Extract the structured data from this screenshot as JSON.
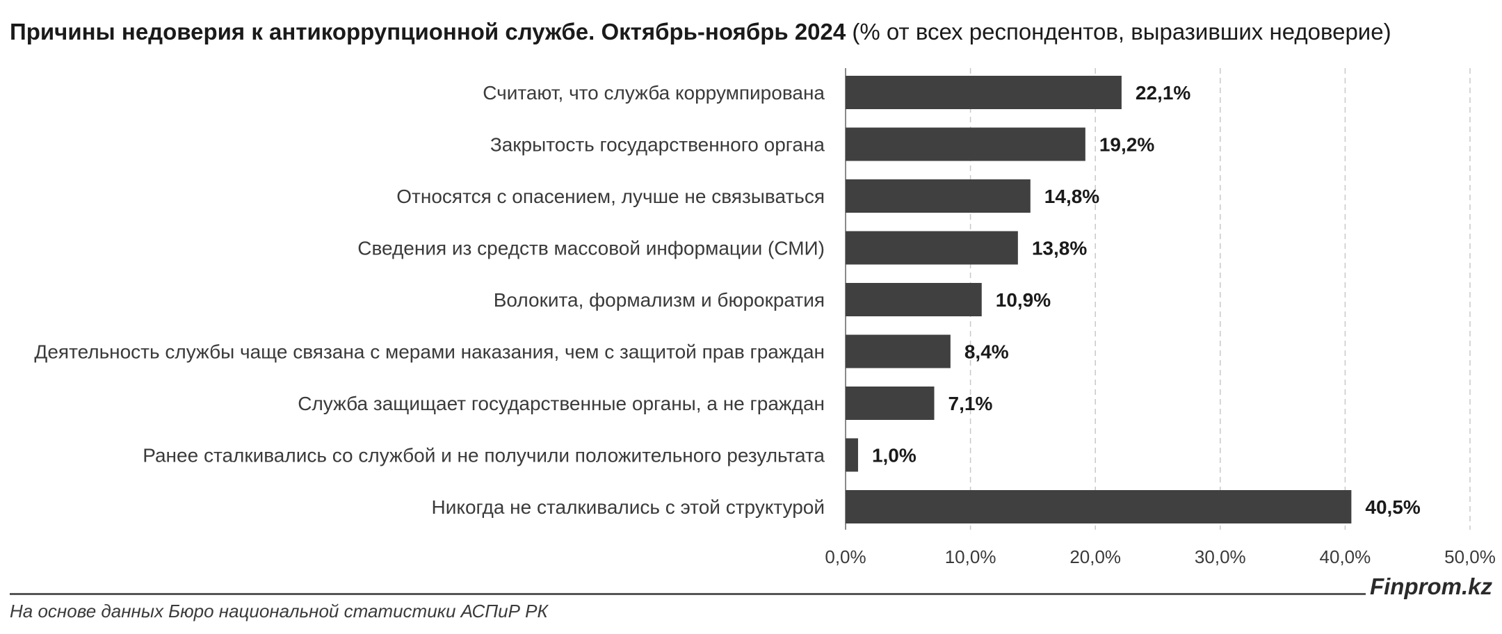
{
  "title": {
    "bold": "Причины недоверия к антикоррупционной службе. Октябрь-ноябрь 2024",
    "normal": " (% от всех респондентов, выразивших недоверие)"
  },
  "chart_data": {
    "type": "bar",
    "orientation": "horizontal",
    "categories": [
      "Считают, что служба коррумпирована",
      "Закрытость государственного органа",
      "Относятся с опасением, лучше не связываться",
      "Сведения из средств массовой информации (СМИ)",
      "Волокита, формализм и бюрократия",
      "Деятельность службы чаще связана с мерами наказания, чем с защитой прав граждан",
      "Служба защищает государственные органы, а не граждан",
      "Ранее сталкивались со службой и не получили положительного результата",
      "Никогда не сталкивались с этой структурой"
    ],
    "values": [
      22.1,
      19.2,
      14.8,
      13.8,
      10.9,
      8.4,
      7.1,
      1.0,
      40.5
    ],
    "value_labels": [
      "22,1%",
      "19,2%",
      "14,8%",
      "13,8%",
      "10,9%",
      "8,4%",
      "7,1%",
      "1,0%",
      "40,5%"
    ],
    "xlim": [
      0,
      50
    ],
    "x_ticks": [
      0,
      10,
      20,
      30,
      40,
      50
    ],
    "x_tick_labels": [
      "0,0%",
      "10,0%",
      "20,0%",
      "30,0%",
      "40,0%",
      "50,0%"
    ],
    "grid": "vertical dashed",
    "bar_color": "#404040"
  },
  "footer": {
    "brand": "Finprom.kz",
    "source": "На основе данных Бюро национальной статистики АСПиР РК"
  }
}
